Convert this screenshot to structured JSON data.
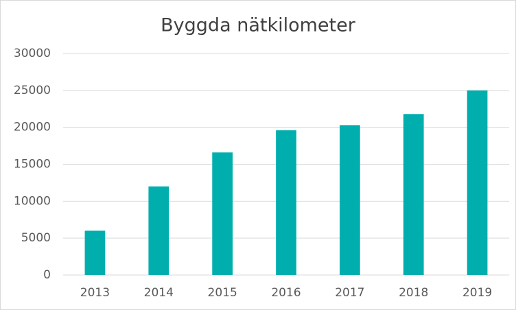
{
  "chart_data": {
    "type": "bar",
    "title": "Byggda nätkilometer",
    "categories": [
      "2013",
      "2014",
      "2015",
      "2016",
      "2017",
      "2018",
      "2019"
    ],
    "values": [
      6000,
      12000,
      16600,
      19600,
      20300,
      21800,
      25000
    ],
    "color": "#00aeae",
    "ylim": [
      0,
      30000
    ],
    "yticks": [
      0,
      5000,
      10000,
      15000,
      20000,
      25000,
      30000
    ],
    "grid": true
  }
}
